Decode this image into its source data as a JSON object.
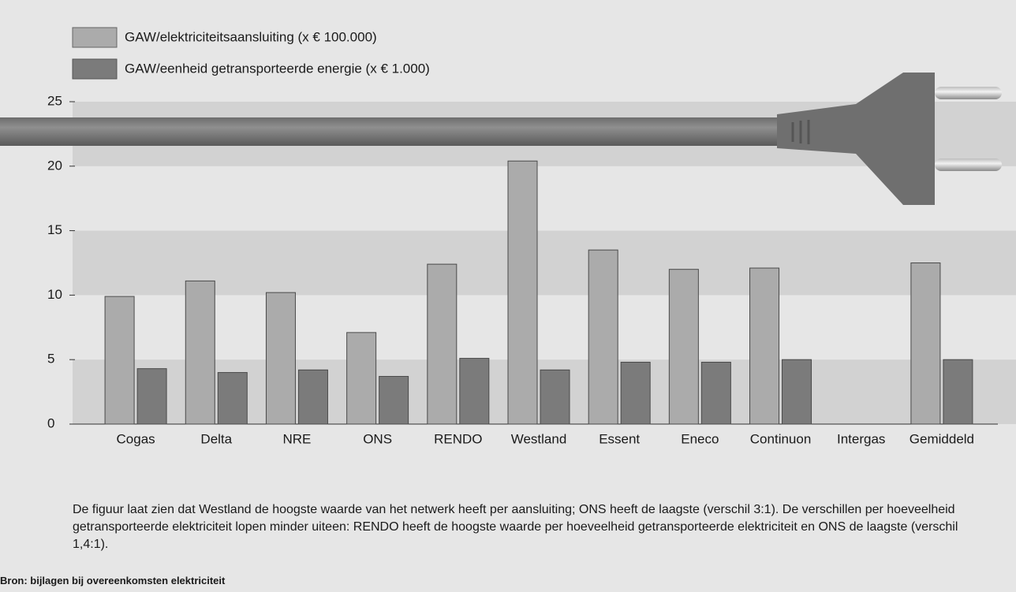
{
  "chart_data": {
    "type": "bar",
    "categories": [
      "Cogas",
      "Delta",
      "NRE",
      "ONS",
      "RENDO",
      "Westland",
      "Essent",
      "Eneco",
      "Continuon",
      "Intergas",
      "Gemiddeld"
    ],
    "series": [
      {
        "name": "GAW/elektriciteitsaansluiting (x € 100.000)",
        "color": "#ababab",
        "values": [
          9.9,
          11.1,
          10.2,
          7.1,
          12.4,
          20.4,
          13.5,
          12.0,
          12.1,
          null,
          12.5
        ]
      },
      {
        "name": "GAW/eenheid getransporteerde energie (x € 1.000)",
        "color": "#7b7b7b",
        "values": [
          4.3,
          4.0,
          4.2,
          3.7,
          5.1,
          4.2,
          4.8,
          4.8,
          5.0,
          null,
          5.0
        ]
      }
    ],
    "ylim": [
      0,
      25
    ],
    "yticks": [
      0,
      5,
      10,
      15,
      20,
      25
    ],
    "grid": true,
    "note": "De figuur laat zien dat Westland de hoogste waarde van het netwerk heeft per aansluiting; ONS heeft de laagste (verschil 3:1). De verschillen per hoeveelheid getransporteerde elektriciteit lopen minder uiteen: RENDO heeft de hoogste waarde per hoeveelheid getransporteerde elektriciteit en ONS de laagste (verschil 1,4:1).",
    "source": "Bron: bijlagen bij overeenkomsten elektriciteit"
  }
}
